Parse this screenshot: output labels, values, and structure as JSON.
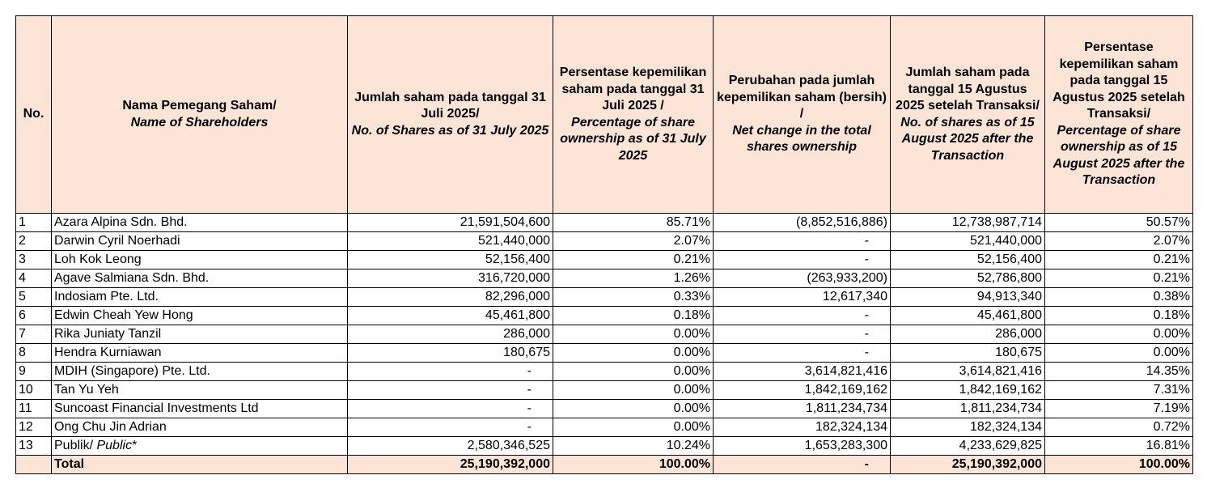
{
  "headers": {
    "no": "No.",
    "name_id": "Nama Pemegang Saham/",
    "name_en": "Name of Shareholders",
    "shares_jul_id": "Jumlah saham pada tanggal 31 Juli 2025/",
    "shares_jul_en": "No. of Shares as of 31 July 2025",
    "pct_jul_id": "Persentase kepemilikan saham pada tanggal 31 Juli 2025 /",
    "pct_jul_en": "Percentage of share ownership as of 31 July 2025",
    "change_id": "Perubahan pada jumlah kepemilikan saham (bersih) /",
    "change_en": "Net change in the total shares ownership",
    "shares_aug_id": "Jumlah saham pada tanggal 15 Agustus 2025 setelah Transaksi/",
    "shares_aug_en": "No. of shares as of 15 August 2025 after the Transaction",
    "pct_aug_id": "Persentase kepemilikan saham pada tanggal 15 Agustus 2025 setelah Transaksi/",
    "pct_aug_en": "Percentage of share ownership as of 15 August 2025 after the Transaction"
  },
  "rows": [
    {
      "no": "1",
      "name": "Azara Alpina Sdn. Bhd.",
      "shares_jul": "21,591,504,600",
      "pct_jul": "85.71%",
      "change": "(8,852,516,886)",
      "shares_aug": "12,738,987,714",
      "pct_aug": "50.57%"
    },
    {
      "no": "2",
      "name": "Darwin Cyril Noerhadi",
      "shares_jul": "521,440,000",
      "pct_jul": "2.07%",
      "change": "-",
      "shares_aug": "521,440,000",
      "pct_aug": "2.07%"
    },
    {
      "no": "3",
      "name": "Loh Kok Leong",
      "shares_jul": "52,156,400",
      "pct_jul": "0.21%",
      "change": "-",
      "shares_aug": "52,156,400",
      "pct_aug": "0.21%"
    },
    {
      "no": "4",
      "name": "Agave Salmiana Sdn. Bhd.",
      "shares_jul": "316,720,000",
      "pct_jul": "1.26%",
      "change": "(263,933,200)",
      "shares_aug": "52,786,800",
      "pct_aug": "0.21%"
    },
    {
      "no": "5",
      "name": "Indosiam Pte. Ltd.",
      "shares_jul": "82,296,000",
      "pct_jul": "0.33%",
      "change": "12,617,340",
      "shares_aug": "94,913,340",
      "pct_aug": "0.38%"
    },
    {
      "no": "6",
      "name": "Edwin Cheah Yew Hong",
      "shares_jul": "45,461,800",
      "pct_jul": "0.18%",
      "change": "-",
      "shares_aug": "45,461,800",
      "pct_aug": "0.18%"
    },
    {
      "no": "7",
      "name": "Rika Juniaty Tanzil",
      "shares_jul": "286,000",
      "pct_jul": "0.00%",
      "change": "-",
      "shares_aug": "286,000",
      "pct_aug": "0.00%"
    },
    {
      "no": "8",
      "name": "Hendra Kurniawan",
      "shares_jul": "180,675",
      "pct_jul": "0.00%",
      "change": "-",
      "shares_aug": "180,675",
      "pct_aug": "0.00%"
    },
    {
      "no": "9",
      "name": "MDIH (Singapore) Pte. Ltd.",
      "shares_jul": "-",
      "pct_jul": "0.00%",
      "change": "3,614,821,416",
      "shares_aug": "3,614,821,416",
      "pct_aug": "14.35%"
    },
    {
      "no": "10",
      "name": "Tan Yu Yeh",
      "shares_jul": "-",
      "pct_jul": "0.00%",
      "change": "1,842,169,162",
      "shares_aug": "1,842,169,162",
      "pct_aug": "7.31%"
    },
    {
      "no": "11",
      "name": "Suncoast Financial Investments Ltd",
      "shares_jul": "-",
      "pct_jul": "0.00%",
      "change": "1,811,234,734",
      "shares_aug": "1,811,234,734",
      "pct_aug": "7.19%"
    },
    {
      "no": "12",
      "name": "Ong Chu Jin Adrian",
      "shares_jul": "-",
      "pct_jul": "0.00%",
      "change": "182,324,134",
      "shares_aug": "182,324,134",
      "pct_aug": "0.72%"
    }
  ],
  "public_row": {
    "no": "13",
    "name_id": "Publik/",
    "name_en": "Public",
    "marker": "*",
    "shares_jul": "2,580,346,525",
    "pct_jul": "10.24%",
    "change": "1,653,283,300",
    "shares_aug": "4,233,629,825",
    "pct_aug": "16.81%"
  },
  "total_row": {
    "label": "Total",
    "shares_jul": "25,190,392,000",
    "pct_jul": "100.00%",
    "change": "-",
    "shares_aug": "25,190,392,000",
    "pct_aug": "100.00%"
  }
}
